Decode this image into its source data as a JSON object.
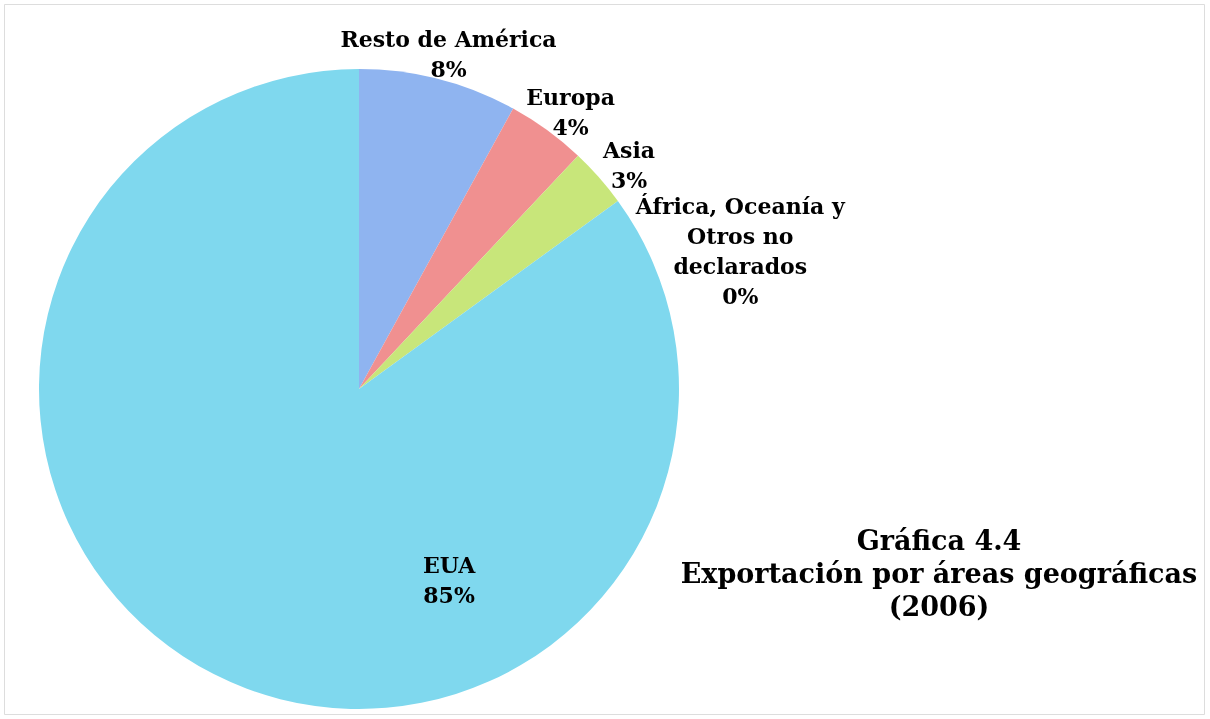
{
  "chart_data": {
    "type": "pie",
    "title": "Gráfica 4.4",
    "subtitle": "Exportación por áreas geográficas (2006)",
    "categories": [
      "Resto de América",
      "Europa",
      "Asia",
      "África, Oceanía y Otros no declarados",
      "EUA"
    ],
    "values": [
      8,
      4,
      3,
      0,
      85
    ],
    "value_labels": [
      "8%",
      "4%",
      "3%",
      "0%",
      "85%"
    ],
    "colors": [
      "#8fb4f0",
      "#f09090",
      "#c8e67a",
      "#b8a8e0",
      "#7fd8ee"
    ],
    "legend": false
  }
}
